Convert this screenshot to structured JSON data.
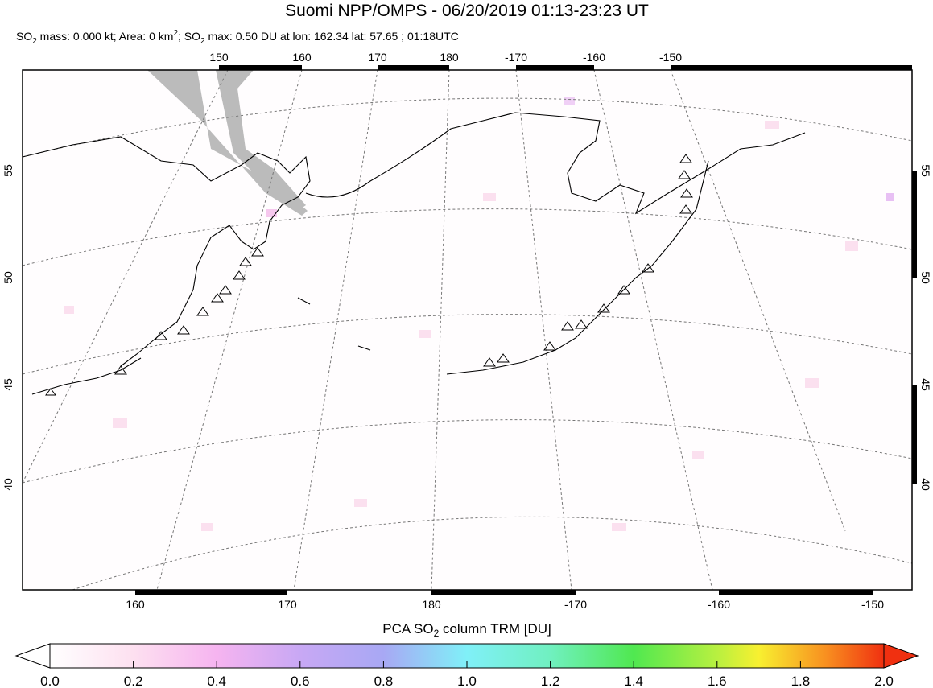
{
  "header": {
    "title": "Suomi NPP/OMPS - 06/20/2019 01:13-23:23 UT",
    "subtitle_parts": [
      "SO",
      "2",
      " mass: 0.000 kt; Area: 0 km",
      "2",
      "; SO",
      "2",
      " max: 0.50 DU at lon: 162.34 lat: 57.65 ; 01:18UTC"
    ]
  },
  "map": {
    "top_lon_labels": [
      150,
      160,
      170,
      180,
      -170,
      -160,
      -150
    ],
    "bottom_lon_labels": [
      160,
      170,
      180,
      -170,
      -160,
      -150
    ],
    "left_lat_labels": [
      55,
      50,
      45,
      40
    ],
    "right_lat_labels": [
      55,
      50,
      45,
      40
    ]
  },
  "colorbar": {
    "title_parts": [
      "PCA SO",
      "2",
      " column TRM [DU]"
    ],
    "range": [
      0,
      2
    ],
    "ticks": [
      {
        "value": 0,
        "label": "0.0"
      },
      {
        "value": 0.2,
        "label": "0.2"
      },
      {
        "value": 0.4,
        "label": "0.4"
      },
      {
        "value": 0.6,
        "label": "0.6"
      },
      {
        "value": 0.8,
        "label": "0.8"
      },
      {
        "value": 1,
        "label": "1.0"
      },
      {
        "value": 1.2,
        "label": "1.2"
      },
      {
        "value": 1.4,
        "label": "1.4"
      },
      {
        "value": 1.6,
        "label": "1.6"
      },
      {
        "value": 1.8,
        "label": "1.8"
      },
      {
        "value": 2,
        "label": "2.0"
      }
    ]
  }
}
